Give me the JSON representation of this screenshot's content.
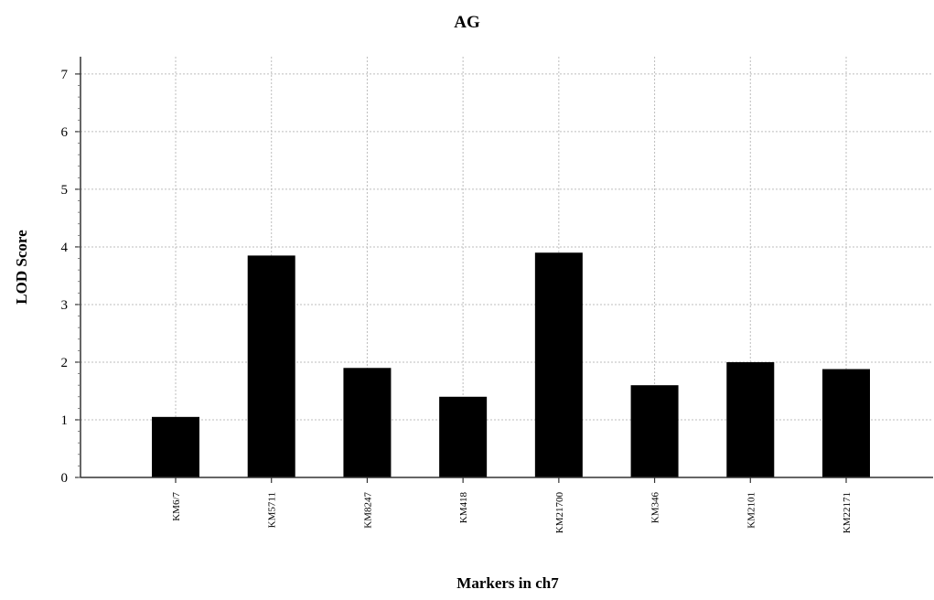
{
  "chart_data": {
    "type": "bar",
    "title": "AG",
    "xlabel": "Markers in ch7",
    "ylabel": "LOD Score",
    "categories": [
      "KM6/7",
      "KM5711",
      "KM8247",
      "KM418",
      "KM21700",
      "KM346",
      "KM2101",
      "KM22171"
    ],
    "values": [
      1.05,
      3.85,
      1.9,
      1.4,
      3.9,
      1.6,
      2.0,
      1.88
    ],
    "ylim": [
      0,
      7.3
    ],
    "yticks": [
      0,
      1,
      2,
      3,
      4,
      5,
      6,
      7
    ],
    "grid": true,
    "bar_color": "#000000"
  }
}
